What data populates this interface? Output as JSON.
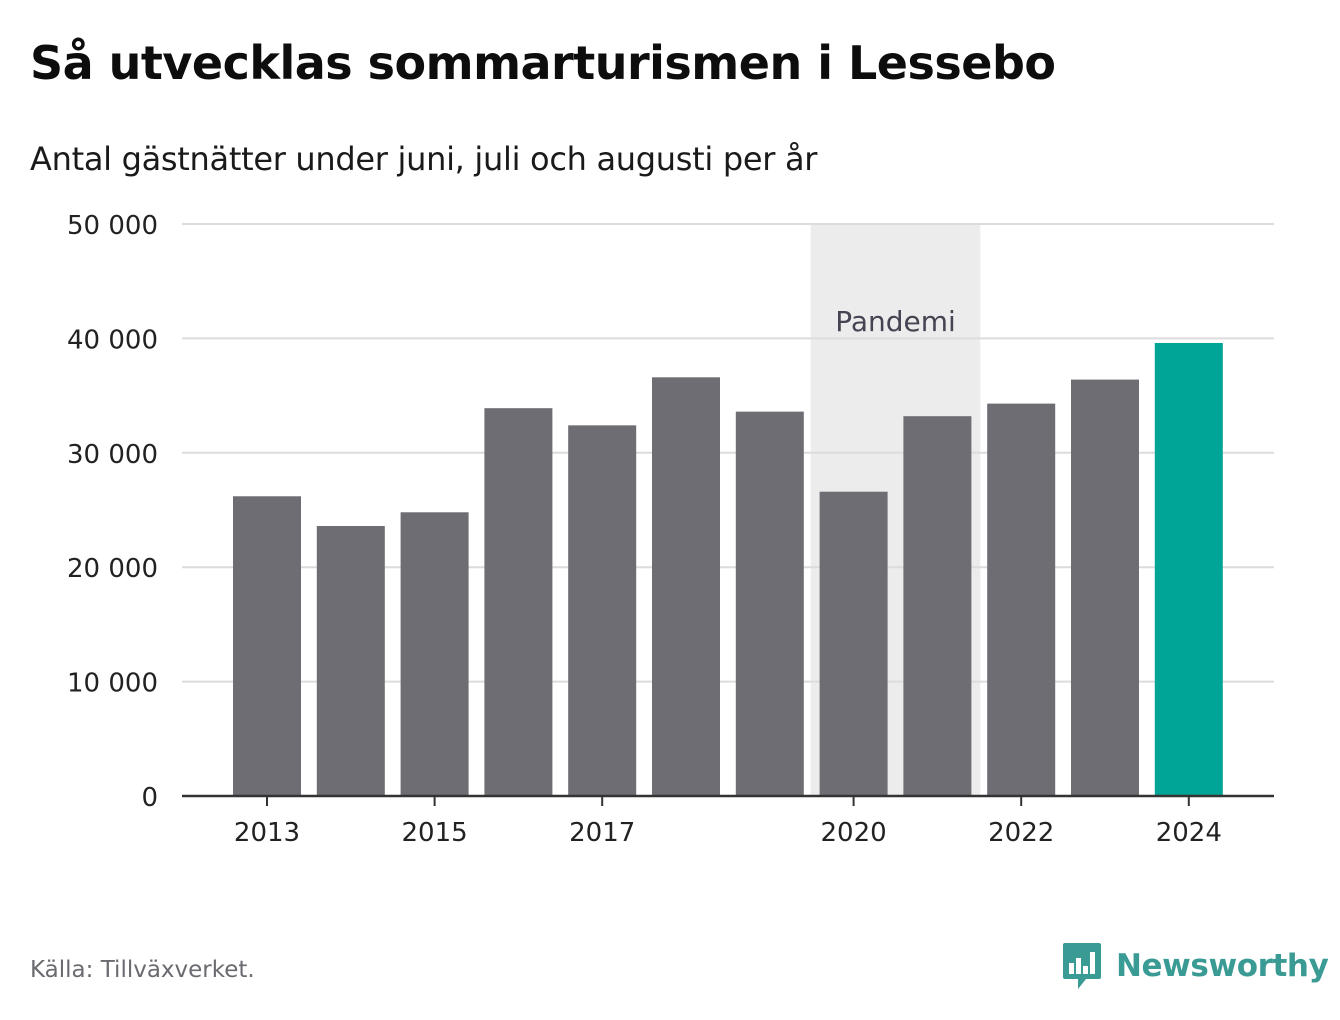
{
  "title": "Så utvecklas sommarturismen i Lessebo",
  "subtitle": "Antal gästnätter under juni, juli och augusti per år",
  "source": "Källa: Tillväxverket.",
  "brand": {
    "name": "Newsworthy",
    "icon": "newsworthy-logo-icon",
    "color": "#3a9a94"
  },
  "colors": {
    "bar": "#6e6d73",
    "highlight": "#00a598",
    "band": "#ececec",
    "grid": "#dcdcdc",
    "axis": "#333333"
  },
  "chart_data": {
    "type": "bar",
    "categories": [
      "2013",
      "2014",
      "2015",
      "2016",
      "2017",
      "2018",
      "2019",
      "2020",
      "2021",
      "2022",
      "2023",
      "2024"
    ],
    "values": [
      26200,
      23600,
      24800,
      33900,
      32400,
      36600,
      33600,
      26600,
      33200,
      34300,
      36400,
      39600
    ],
    "highlight_category": "2024",
    "x_tick_labels": [
      "2013",
      "2015",
      "2017",
      "2020",
      "2022",
      "2024"
    ],
    "y_ticks": [
      0,
      10000,
      20000,
      30000,
      40000,
      50000
    ],
    "y_tick_labels": [
      "0",
      "10 000",
      "20 000",
      "30 000",
      "40 000",
      "50 000"
    ],
    "ylim": [
      0,
      50000
    ],
    "grid": true,
    "annotation": {
      "label": "Pandemi",
      "from": "2020",
      "to": "2021"
    }
  }
}
